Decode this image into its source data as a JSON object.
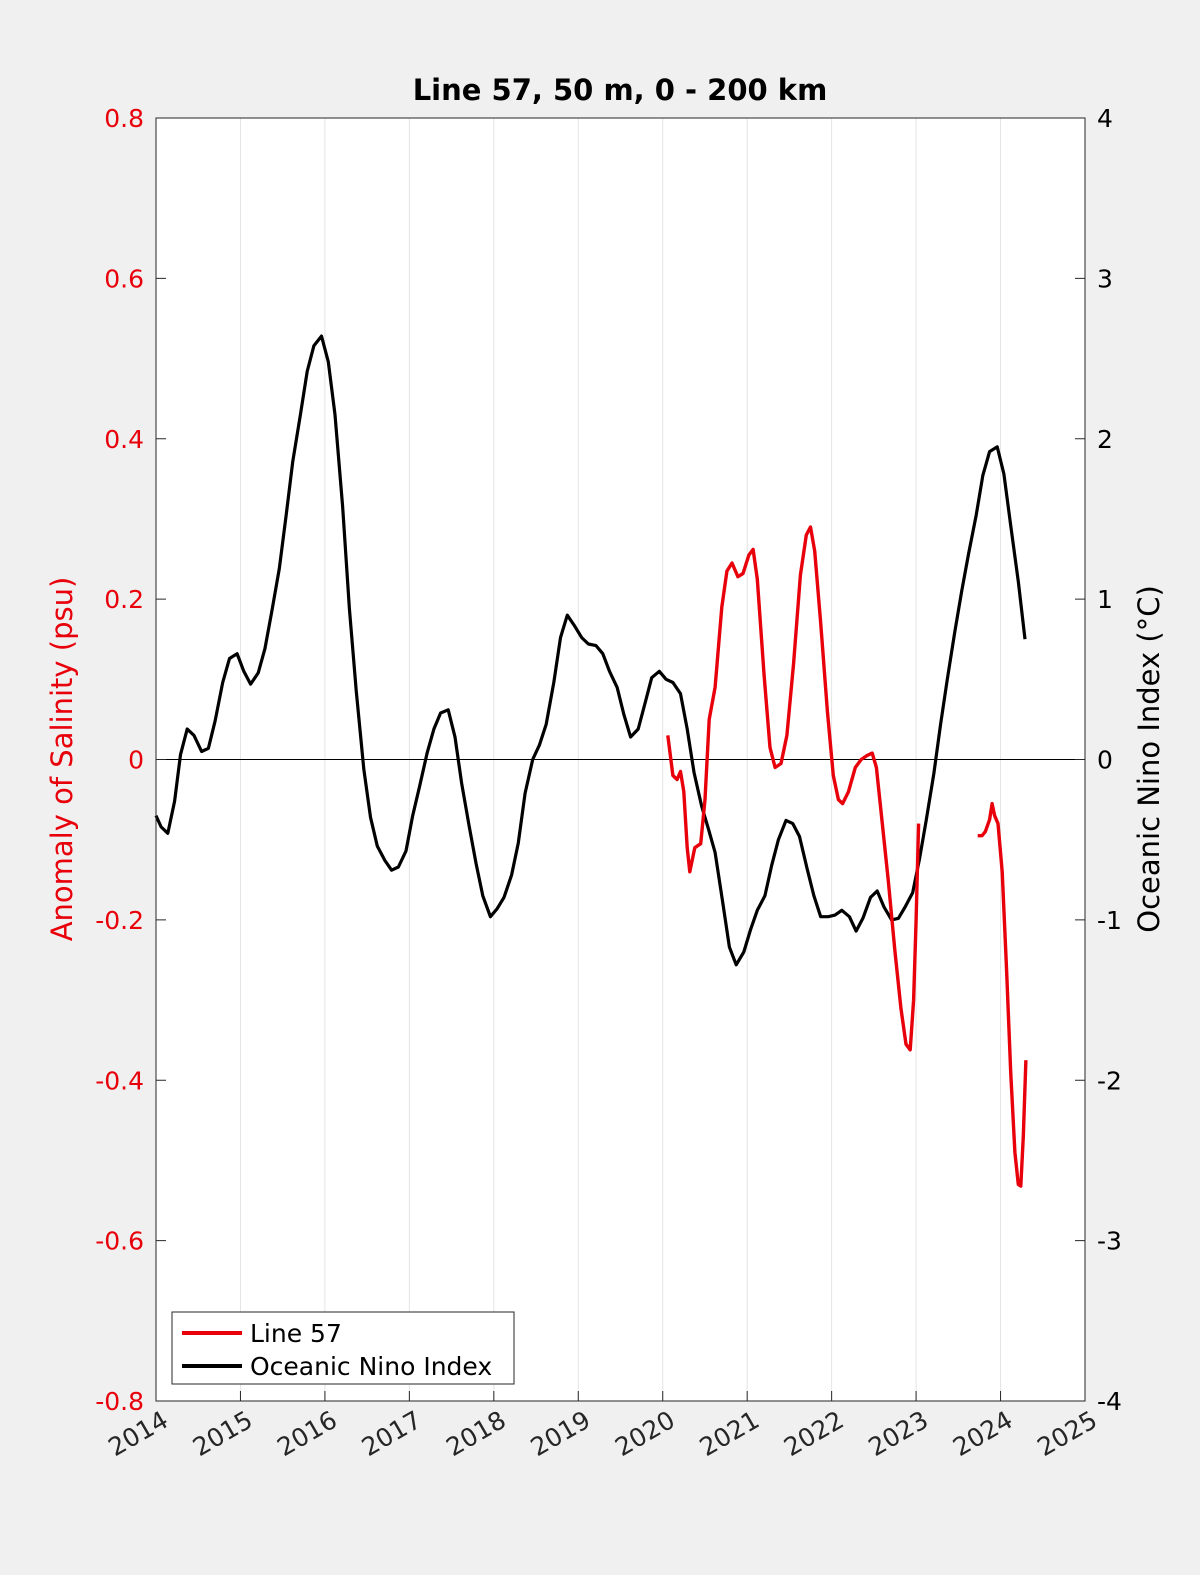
{
  "chart_data": {
    "type": "line",
    "title": "Line 57, 50 m, 0 - 200 km",
    "ylabel_left": "Anomaly of Salinity (psu)",
    "ylabel_right": "Oceanic Nino Index (°C)",
    "xlim": [
      2014,
      2025
    ],
    "ylim_left": [
      -0.8,
      0.8
    ],
    "ylim_right": [
      -4,
      4
    ],
    "x_ticks": [
      "2014",
      "2015",
      "2016",
      "2017",
      "2018",
      "2019",
      "2020",
      "2021",
      "2022",
      "2023",
      "2024",
      "2025"
    ],
    "y_left_ticks": [
      "0.8",
      "0.6",
      "0.4",
      "0.2",
      "0",
      "-0.2",
      "-0.4",
      "-0.6",
      "-0.8"
    ],
    "y_right_ticks": [
      "4",
      "3",
      "2",
      "1",
      "0",
      "-1",
      "-2",
      "-3",
      "-4"
    ],
    "grid": "vertical",
    "zero_line": true,
    "legend_position": "bottom-left",
    "colors": {
      "left_axis": "#e8000b",
      "right_axis": "#000000",
      "line57": "#e8000b",
      "oni": "#000000"
    },
    "series": [
      {
        "name": "Line 57",
        "axis": "left",
        "segments": [
          [
            [
              2020.06,
              0.03
            ],
            [
              2020.12,
              -0.02
            ],
            [
              2020.17,
              -0.025
            ],
            [
              2020.21,
              -0.015
            ],
            [
              2020.25,
              -0.04
            ],
            [
              2020.29,
              -0.11
            ],
            [
              2020.32,
              -0.14
            ],
            [
              2020.38,
              -0.11
            ],
            [
              2020.45,
              -0.105
            ],
            [
              2020.5,
              -0.05
            ],
            [
              2020.55,
              0.05
            ],
            [
              2020.62,
              0.09
            ],
            [
              2020.7,
              0.19
            ],
            [
              2020.76,
              0.235
            ],
            [
              2020.82,
              0.245
            ],
            [
              2020.89,
              0.228
            ],
            [
              2020.95,
              0.232
            ],
            [
              2021.02,
              0.255
            ],
            [
              2021.07,
              0.262
            ],
            [
              2021.12,
              0.225
            ],
            [
              2021.2,
              0.105
            ],
            [
              2021.27,
              0.015
            ],
            [
              2021.33,
              -0.01
            ],
            [
              2021.4,
              -0.005
            ],
            [
              2021.47,
              0.03
            ],
            [
              2021.55,
              0.12
            ],
            [
              2021.63,
              0.23
            ],
            [
              2021.7,
              0.28
            ],
            [
              2021.75,
              0.29
            ],
            [
              2021.8,
              0.26
            ],
            [
              2021.87,
              0.17
            ],
            [
              2021.95,
              0.06
            ],
            [
              2022.02,
              -0.02
            ],
            [
              2022.08,
              -0.05
            ],
            [
              2022.13,
              -0.055
            ],
            [
              2022.2,
              -0.04
            ],
            [
              2022.28,
              -0.01
            ],
            [
              2022.35,
              0.0
            ],
            [
              2022.42,
              0.005
            ],
            [
              2022.48,
              0.008
            ],
            [
              2022.53,
              -0.01
            ],
            [
              2022.6,
              -0.08
            ],
            [
              2022.67,
              -0.15
            ],
            [
              2022.75,
              -0.24
            ],
            [
              2022.82,
              -0.31
            ],
            [
              2022.88,
              -0.355
            ],
            [
              2022.93,
              -0.362
            ],
            [
              2022.97,
              -0.3
            ],
            [
              2023.0,
              -0.2
            ],
            [
              2023.03,
              -0.08
            ]
          ],
          [
            [
              2023.73,
              -0.095
            ],
            [
              2023.78,
              -0.095
            ],
            [
              2023.82,
              -0.09
            ],
            [
              2023.87,
              -0.075
            ],
            [
              2023.9,
              -0.055
            ],
            [
              2023.93,
              -0.07
            ],
            [
              2023.97,
              -0.08
            ],
            [
              2024.02,
              -0.14
            ],
            [
              2024.07,
              -0.26
            ],
            [
              2024.12,
              -0.39
            ],
            [
              2024.17,
              -0.49
            ],
            [
              2024.21,
              -0.53
            ],
            [
              2024.24,
              -0.532
            ],
            [
              2024.27,
              -0.47
            ],
            [
              2024.3,
              -0.375
            ]
          ]
        ]
      },
      {
        "name": "Oceanic Nino Index",
        "axis": "right",
        "points": [
          [
            2014.0,
            -0.35
          ],
          [
            2014.06,
            -0.42
          ],
          [
            2014.14,
            -0.46
          ],
          [
            2014.22,
            -0.26
          ],
          [
            2014.29,
            0.03
          ],
          [
            2014.37,
            0.19
          ],
          [
            2014.45,
            0.15
          ],
          [
            2014.54,
            0.05
          ],
          [
            2014.62,
            0.07
          ],
          [
            2014.7,
            0.24
          ],
          [
            2014.79,
            0.48
          ],
          [
            2014.87,
            0.63
          ],
          [
            2014.96,
            0.66
          ],
          [
            2015.04,
            0.55
          ],
          [
            2015.12,
            0.47
          ],
          [
            2015.21,
            0.54
          ],
          [
            2015.29,
            0.69
          ],
          [
            2015.37,
            0.92
          ],
          [
            2015.46,
            1.19
          ],
          [
            2015.54,
            1.52
          ],
          [
            2015.62,
            1.86
          ],
          [
            2015.71,
            2.15
          ],
          [
            2015.79,
            2.42
          ],
          [
            2015.87,
            2.58
          ],
          [
            2015.96,
            2.64
          ],
          [
            2016.04,
            2.48
          ],
          [
            2016.12,
            2.15
          ],
          [
            2016.21,
            1.58
          ],
          [
            2016.29,
            0.94
          ],
          [
            2016.37,
            0.43
          ],
          [
            2016.46,
            -0.06
          ],
          [
            2016.54,
            -0.36
          ],
          [
            2016.62,
            -0.54
          ],
          [
            2016.71,
            -0.63
          ],
          [
            2016.79,
            -0.69
          ],
          [
            2016.87,
            -0.67
          ],
          [
            2016.96,
            -0.57
          ],
          [
            2017.04,
            -0.35
          ],
          [
            2017.12,
            -0.17
          ],
          [
            2017.21,
            0.04
          ],
          [
            2017.29,
            0.19
          ],
          [
            2017.37,
            0.29
          ],
          [
            2017.46,
            0.31
          ],
          [
            2017.54,
            0.14
          ],
          [
            2017.62,
            -0.15
          ],
          [
            2017.71,
            -0.42
          ],
          [
            2017.79,
            -0.65
          ],
          [
            2017.87,
            -0.85
          ],
          [
            2017.96,
            -0.98
          ],
          [
            2018.04,
            -0.93
          ],
          [
            2018.12,
            -0.86
          ],
          [
            2018.21,
            -0.72
          ],
          [
            2018.29,
            -0.52
          ],
          [
            2018.37,
            -0.21
          ],
          [
            2018.46,
            0.0
          ],
          [
            2018.54,
            0.09
          ],
          [
            2018.62,
            0.22
          ],
          [
            2018.71,
            0.48
          ],
          [
            2018.79,
            0.76
          ],
          [
            2018.87,
            0.9
          ],
          [
            2018.96,
            0.83
          ],
          [
            2019.04,
            0.76
          ],
          [
            2019.12,
            0.72
          ],
          [
            2019.21,
            0.71
          ],
          [
            2019.29,
            0.66
          ],
          [
            2019.37,
            0.55
          ],
          [
            2019.46,
            0.45
          ],
          [
            2019.54,
            0.28
          ],
          [
            2019.62,
            0.14
          ],
          [
            2019.71,
            0.19
          ],
          [
            2019.79,
            0.35
          ],
          [
            2019.87,
            0.51
          ],
          [
            2019.96,
            0.55
          ],
          [
            2020.04,
            0.5
          ],
          [
            2020.12,
            0.48
          ],
          [
            2020.21,
            0.41
          ],
          [
            2020.29,
            0.19
          ],
          [
            2020.37,
            -0.08
          ],
          [
            2020.46,
            -0.29
          ],
          [
            2020.54,
            -0.43
          ],
          [
            2020.62,
            -0.58
          ],
          [
            2020.71,
            -0.89
          ],
          [
            2020.79,
            -1.17
          ],
          [
            2020.87,
            -1.28
          ],
          [
            2020.96,
            -1.2
          ],
          [
            2021.04,
            -1.06
          ],
          [
            2021.12,
            -0.94
          ],
          [
            2021.21,
            -0.85
          ],
          [
            2021.29,
            -0.66
          ],
          [
            2021.37,
            -0.5
          ],
          [
            2021.46,
            -0.38
          ],
          [
            2021.54,
            -0.4
          ],
          [
            2021.62,
            -0.48
          ],
          [
            2021.71,
            -0.68
          ],
          [
            2021.79,
            -0.85
          ],
          [
            2021.87,
            -0.98
          ],
          [
            2021.96,
            -0.98
          ],
          [
            2022.04,
            -0.97
          ],
          [
            2022.12,
            -0.94
          ],
          [
            2022.21,
            -0.98
          ],
          [
            2022.29,
            -1.07
          ],
          [
            2022.37,
            -0.99
          ],
          [
            2022.46,
            -0.86
          ],
          [
            2022.54,
            -0.82
          ],
          [
            2022.62,
            -0.92
          ],
          [
            2022.71,
            -1.0
          ],
          [
            2022.79,
            -0.99
          ],
          [
            2022.87,
            -0.92
          ],
          [
            2022.96,
            -0.83
          ],
          [
            2023.04,
            -0.62
          ],
          [
            2023.12,
            -0.38
          ],
          [
            2023.21,
            -0.09
          ],
          [
            2023.29,
            0.22
          ],
          [
            2023.37,
            0.5
          ],
          [
            2023.46,
            0.8
          ],
          [
            2023.54,
            1.05
          ],
          [
            2023.62,
            1.28
          ],
          [
            2023.71,
            1.52
          ],
          [
            2023.79,
            1.77
          ],
          [
            2023.87,
            1.92
          ],
          [
            2023.96,
            1.95
          ],
          [
            2024.04,
            1.78
          ],
          [
            2024.12,
            1.46
          ],
          [
            2024.21,
            1.11
          ],
          [
            2024.29,
            0.75
          ]
        ]
      }
    ]
  }
}
